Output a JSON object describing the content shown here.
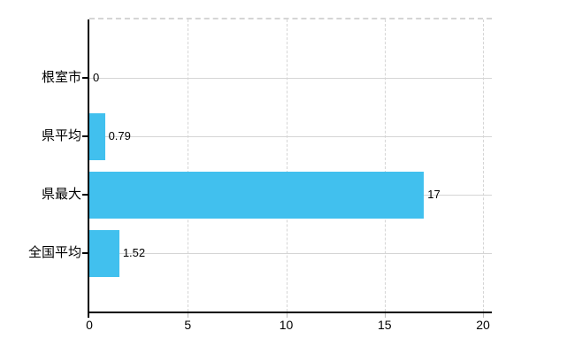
{
  "chart_data": {
    "type": "bar",
    "orientation": "horizontal",
    "categories": [
      "根室市",
      "県平均",
      "県最大",
      "全国平均"
    ],
    "values": [
      0,
      0.79,
      17,
      1.52
    ],
    "value_labels": [
      "0",
      "0.79",
      "17",
      "1.52"
    ],
    "x_tick_labels": [
      "0",
      "5",
      "10",
      "15",
      "20"
    ],
    "x_tick_values": [
      0,
      5,
      10,
      15,
      20
    ],
    "xlim": [
      0,
      20
    ],
    "grid": true,
    "legend": "none",
    "title": "",
    "colors": {
      "bar": "#41c0ee",
      "axis": "#000000",
      "gridline": "#d5d5d5",
      "text": "#000000",
      "background": "#ffffff"
    }
  }
}
